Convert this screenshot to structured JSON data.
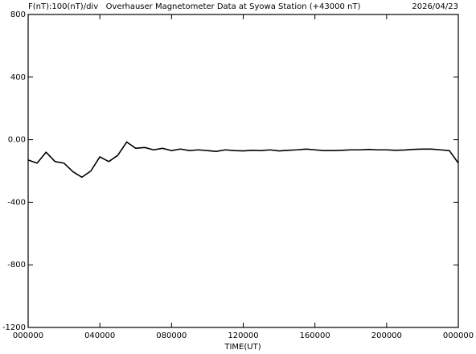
{
  "chart_data": {
    "type": "line",
    "y_label": "F(nT):100(nT)/div",
    "title": "Overhauser Magnetometer Data at Syowa Station (+43000 nT)",
    "date": "2026/04/23",
    "x_label": "TIME(UT)",
    "x": [
      0,
      0.5,
      1,
      1.5,
      2,
      2.5,
      3,
      3.5,
      4,
      4.5,
      5,
      5.5,
      6,
      6.5,
      7,
      7.5,
      8,
      8.5,
      9,
      9.5,
      10,
      10.5,
      11,
      11.5,
      12,
      12.5,
      13,
      13.5,
      14,
      14.5,
      15,
      15.5,
      16,
      16.5,
      17,
      17.5,
      18,
      18.5,
      19,
      19.5,
      20,
      20.5,
      21,
      21.5,
      22,
      22.5,
      23,
      23.5,
      24
    ],
    "series": [
      {
        "name": "F",
        "color": "#000000",
        "values": [
          -130,
          -150,
          -80,
          -140,
          -150,
          -205,
          -240,
          -200,
          -110,
          -140,
          -100,
          -15,
          -55,
          -50,
          -65,
          -55,
          -70,
          -60,
          -70,
          -65,
          -70,
          -75,
          -65,
          -70,
          -72,
          -68,
          -70,
          -65,
          -72,
          -68,
          -65,
          -60,
          -65,
          -70,
          -70,
          -68,
          -65,
          -65,
          -62,
          -65,
          -65,
          -68,
          -66,
          -62,
          -60,
          -60,
          -65,
          -70,
          -150
        ]
      }
    ],
    "xlim": [
      0,
      24
    ],
    "xticks": [
      {
        "value": 0,
        "label": "000000"
      },
      {
        "value": 4,
        "label": "040000"
      },
      {
        "value": 8,
        "label": "080000"
      },
      {
        "value": 12,
        "label": "120000"
      },
      {
        "value": 16,
        "label": "160000"
      },
      {
        "value": 20,
        "label": "200000"
      },
      {
        "value": 24,
        "label": "000000"
      }
    ],
    "ylim": [
      -1200,
      800
    ],
    "yticks": [
      {
        "value": -1200,
        "label": "-1200"
      },
      -800,
      -400,
      {
        "value": 0,
        "label": "0.00"
      },
      400,
      800
    ],
    "grid": false
  }
}
